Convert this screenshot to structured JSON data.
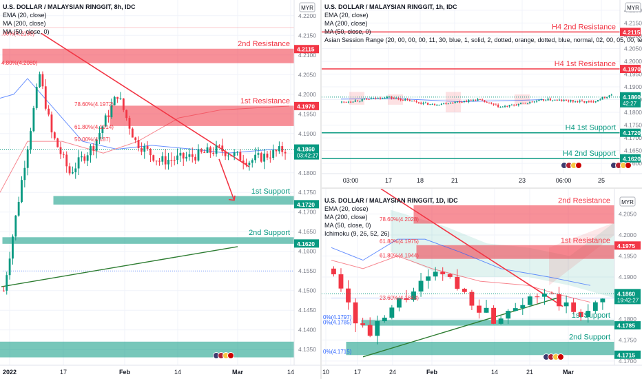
{
  "chart_data": [
    {
      "type": "candlestick",
      "header": {
        "title": "U.S. DOLLAR / MALAYSIAN RINGGIT, 8h, IDC",
        "studies": [
          "EMA (20, close)",
          "MA (200, close)",
          "MA (50, close, 0)"
        ]
      },
      "currency_badge": "MYR",
      "ylim": [
        4.131,
        4.224
      ],
      "yticks": [
        "4.2200",
        "4.2150",
        "4.2100",
        "4.2050",
        "4.2000",
        "4.1950",
        "4.1900",
        "4.1850",
        "4.1800",
        "4.1750",
        "4.1700",
        "4.1650",
        "4.1600",
        "4.1550",
        "4.1500",
        "4.1450",
        "4.1400",
        "4.1350"
      ],
      "xticks": [
        "2022",
        "17",
        "Feb",
        "14",
        "Mar",
        "14"
      ],
      "zones": [
        {
          "label": "2nd Resistance",
          "low": 4.208,
          "high": 4.2115,
          "price": "4.2115",
          "color": "#f23645"
        },
        {
          "label": "1st Resistance",
          "low": 4.192,
          "high": 4.197,
          "price": "4.1970",
          "color": "#f23645"
        },
        {
          "label": "1st Support",
          "low": 4.172,
          "high": 4.174,
          "price": "4.1720",
          "color": "#089981"
        },
        {
          "label": "2nd Support",
          "low": 4.162,
          "high": 4.1635,
          "price": "4.1620",
          "color": "#089981"
        }
      ],
      "fib_levels": [
        "78.60%(4.1972)",
        "61.80%(4.1914)",
        "50.00%(4.187)",
        "4.80%(4.2080)"
      ],
      "current_price": "4.1860",
      "countdown": "03:42:27"
    },
    {
      "type": "candlestick",
      "header": {
        "title": "U.S. DOLLAR / MALAYSIAN RINGGIT, 1h, IDC",
        "studies": [
          "EMA (20, close)",
          "MA (200, close)",
          "MA (50, close, 0)",
          "Asian Session Range (20, 00, 00, 00, 11, 30, blue, 1, solid, 2, dotted, orange, dotted, blue, normal, 02, 00, 05, 00, teal, 1, solid, 2, dotted, te"
        ]
      },
      "currency_badge": "MYR",
      "ylim": [
        4.156,
        4.224
      ],
      "yticks": [
        "4.2200",
        "4.2150",
        "4.2100",
        "4.2050",
        "4.2000",
        "4.1950",
        "4.1900",
        "4.1850",
        "4.1800",
        "4.1750",
        "4.1700",
        "4.1650",
        "4.1600"
      ],
      "xticks": [
        "03:00",
        "17",
        "18",
        "21",
        "23",
        "06:00",
        "25"
      ],
      "lines": [
        {
          "label": "H4 2nd Resistance",
          "value": 4.2115,
          "price": "4.2115",
          "color": "#f23645"
        },
        {
          "label": "H4 1st Resistance",
          "value": 4.197,
          "price": "4.1970",
          "color": "#f23645"
        },
        {
          "label": "H4 1st Support",
          "value": 4.172,
          "price": "4.1720",
          "color": "#089981"
        },
        {
          "label": "H4 2nd Support",
          "value": 4.162,
          "price": "4.1620",
          "color": "#089981"
        }
      ],
      "current_price": "4.1860",
      "countdown": "42:27"
    },
    {
      "type": "candlestick",
      "header": {
        "title": "U.S. DOLLAR / MALAYSIAN RINGGIT, 1D, IDC",
        "studies": [
          "EMA (20, close)",
          "MA (200, close)",
          "MA (50, close, 0)",
          "Ichimoku (9, 26, 52, 26)"
        ]
      },
      "currency_badge": "MYR",
      "ylim": [
        4.169,
        4.211
      ],
      "yticks": [
        "4.2050",
        "4.2000",
        "4.1950",
        "4.1900",
        "4.1850",
        "4.1800",
        "4.1750",
        "4.1700"
      ],
      "xticks": [
        "10",
        "17",
        "24",
        "Feb",
        "14",
        "21",
        "Mar"
      ],
      "zones": [
        {
          "label": "2nd Resistance",
          "low": 4.2028,
          "high": 4.207,
          "price": "",
          "color": "#f23645"
        },
        {
          "label": "1st Resistance",
          "low": 4.1944,
          "high": 4.1975,
          "price": "4.1975",
          "color": "#f23645"
        },
        {
          "label": "1st Support",
          "low": 4.1785,
          "high": 4.1797,
          "price": "4.1785",
          "color": "#089981"
        },
        {
          "label": "2nd Support",
          "low": 4.1715,
          "high": 4.1745,
          "price": "4.1715",
          "color": "#089981"
        }
      ],
      "fib_levels": [
        "78.60%(4.2028)",
        "61.80%(4.1975)",
        "61.80%(4.1944)",
        "23.60%(4.1843)",
        "0%(4.1797)",
        "0%(4.1785)",
        "0%(4.1715)"
      ],
      "current_price": "4.1860",
      "countdown": "19:42:27"
    }
  ]
}
